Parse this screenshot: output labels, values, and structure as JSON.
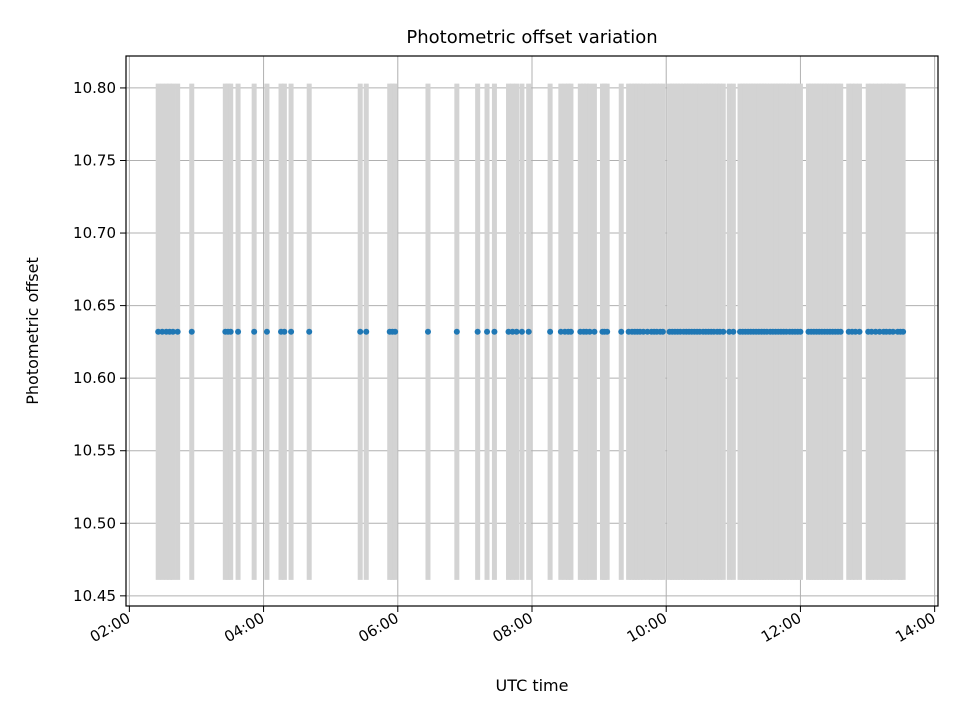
{
  "chart_data": {
    "type": "scatter",
    "title": "Photometric offset variation",
    "xlabel": "UTC time",
    "ylabel": "Photometric offset",
    "x_tick_labels": [
      "02:00",
      "04:00",
      "06:00",
      "08:00",
      "10:00",
      "12:00",
      "14:00"
    ],
    "x_ticks_hours": [
      2,
      4,
      6,
      8,
      10,
      12,
      14
    ],
    "y_tick_labels": [
      "10.45",
      "10.50",
      "10.55",
      "10.60",
      "10.65",
      "10.70",
      "10.75",
      "10.80"
    ],
    "y_ticks": [
      10.45,
      10.5,
      10.55,
      10.6,
      10.65,
      10.7,
      10.75,
      10.8
    ],
    "xlim_hours": [
      1.95,
      14.05
    ],
    "ylim": [
      10.443,
      10.822
    ],
    "grid": true,
    "colors": {
      "points": "#1f77b4",
      "errorbars": "#d3d3d3"
    },
    "series": [
      {
        "values": {
          "y_value": 10.632,
          "error_low": 10.461,
          "error_high": 10.803,
          "x_hours": [
            2.43,
            2.49,
            2.55,
            2.6,
            2.65,
            2.72,
            2.93,
            3.43,
            3.47,
            3.51,
            3.62,
            3.86,
            4.05,
            4.26,
            4.31,
            4.41,
            4.68,
            5.44,
            5.53,
            5.88,
            5.92,
            5.96,
            6.45,
            6.88,
            7.19,
            7.33,
            7.44,
            7.65,
            7.71,
            7.77,
            7.85,
            7.95,
            8.27,
            8.43,
            8.49,
            8.54,
            8.58,
            8.72,
            8.77,
            8.81,
            8.86,
            8.93,
            9.05,
            9.08,
            9.12,
            9.33,
            9.44,
            9.49,
            9.53,
            9.57,
            9.61,
            9.66,
            9.72,
            9.78,
            9.82,
            9.86,
            9.91,
            9.95,
            10.05,
            10.09,
            10.13,
            10.17,
            10.21,
            10.26,
            10.3,
            10.34,
            10.38,
            10.42,
            10.46,
            10.5,
            10.55,
            10.59,
            10.63,
            10.67,
            10.71,
            10.76,
            10.8,
            10.85,
            10.94,
            11.0,
            11.1,
            11.14,
            11.18,
            11.22,
            11.26,
            11.3,
            11.34,
            11.38,
            11.42,
            11.46,
            11.5,
            11.55,
            11.59,
            11.63,
            11.67,
            11.71,
            11.75,
            11.79,
            11.84,
            11.88,
            11.92,
            11.96,
            12.0,
            12.12,
            12.16,
            12.2,
            12.24,
            12.28,
            12.32,
            12.36,
            12.4,
            12.44,
            12.48,
            12.52,
            12.56,
            12.6,
            12.72,
            12.77,
            12.82,
            12.88,
            13.01,
            13.06,
            13.12,
            13.18,
            13.24,
            13.28,
            13.33,
            13.38,
            13.45,
            13.49,
            13.53
          ]
        }
      }
    ]
  }
}
